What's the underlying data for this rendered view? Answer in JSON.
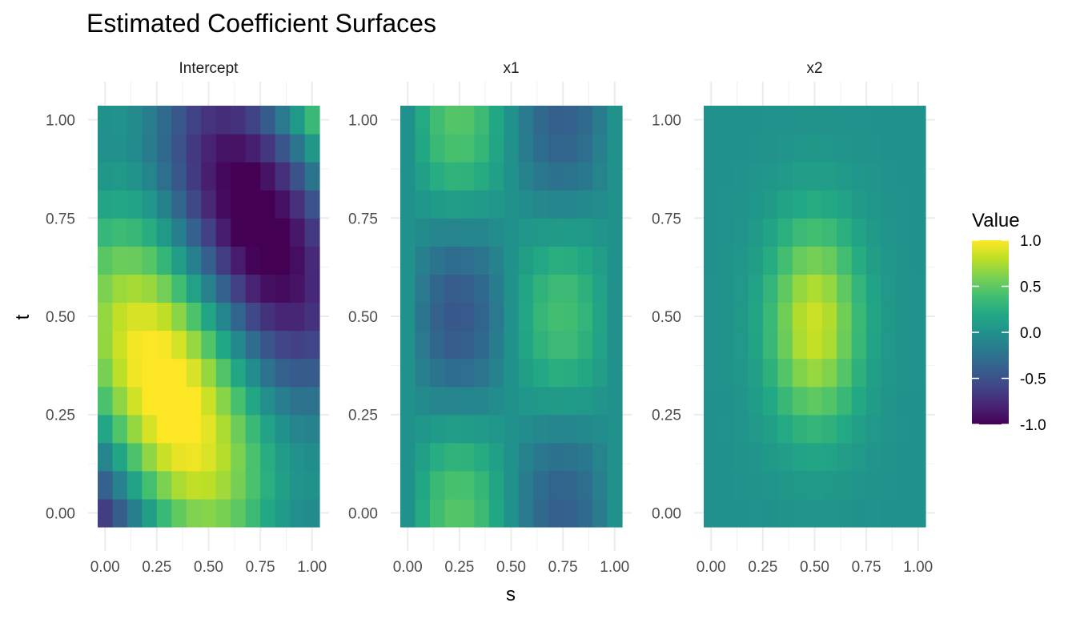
{
  "chart_data": {
    "type": "heatmap",
    "title": "Estimated Coefficient Surfaces",
    "xlabel": "s",
    "ylabel": "t",
    "xlim": [
      0,
      1
    ],
    "ylim": [
      0,
      1
    ],
    "x_ticks": [
      "0.00",
      "0.25",
      "0.50",
      "0.75",
      "1.00"
    ],
    "y_ticks": [
      "0.00",
      "0.25",
      "0.50",
      "0.75",
      "1.00"
    ],
    "grid": true,
    "grid_resolution": {
      "s": 15,
      "t": 15,
      "s_step": 0.0714,
      "t_step": 0.0714
    },
    "legend": {
      "title": "Value",
      "position": "right",
      "labels": [
        "1.0",
        "0.5",
        "0.0",
        "-0.5",
        "-1.0"
      ],
      "range": [
        -1.0,
        1.0
      ],
      "colormap": "viridis"
    },
    "panels": [
      {
        "name": "Intercept",
        "surface": "intercept"
      },
      {
        "name": "x1",
        "surface": "x1"
      },
      {
        "name": "x2",
        "surface": "x2"
      }
    ]
  }
}
